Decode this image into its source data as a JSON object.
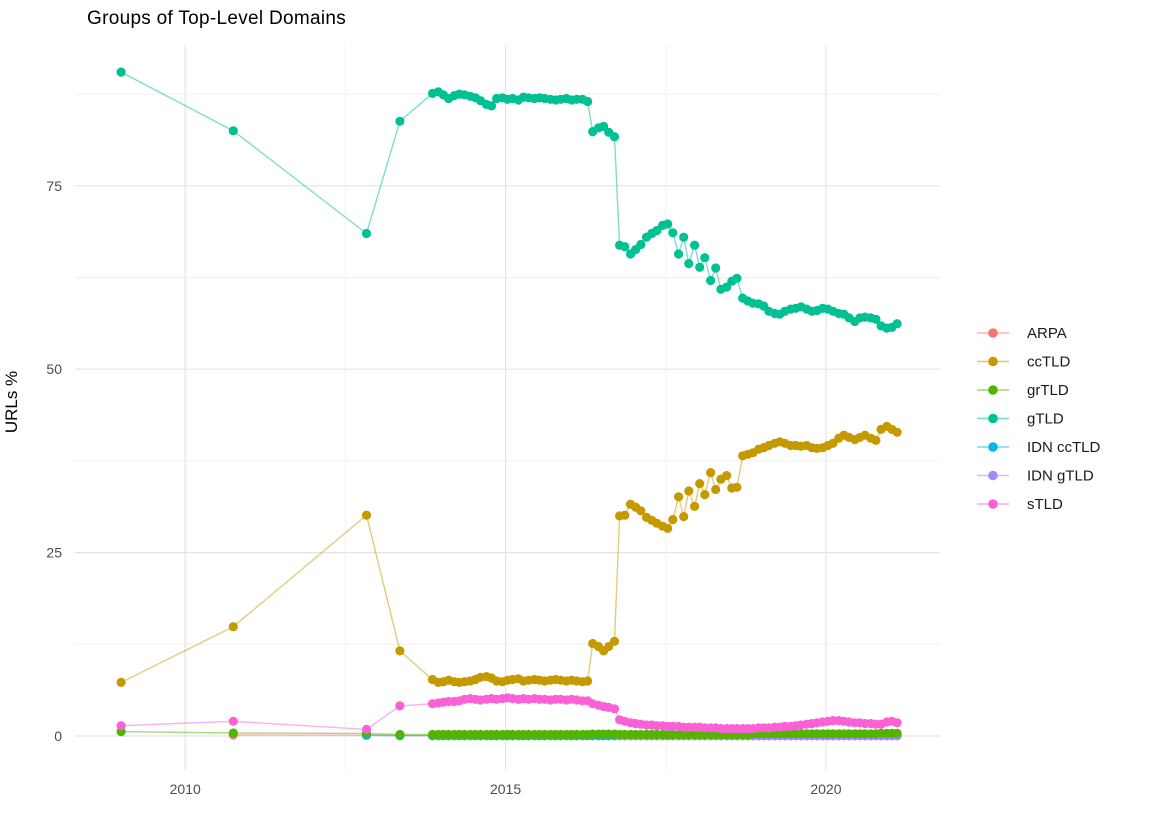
{
  "colors": {
    "background": "#FFFFFF",
    "grid_major": "#E4E4E4",
    "grid_minor": "#F1F1F1",
    "axis_text": "#4D4D4D",
    "text": "#1A1A1A"
  },
  "chart_data": {
    "type": "line",
    "title": "Groups of Top-Level Domains",
    "xlabel": "",
    "ylabel": "URLs %",
    "grid": true,
    "legend_position": "right",
    "x_ticks": [
      2010,
      2015,
      2020
    ],
    "x_minor_ticks": [
      2012.5,
      2017.5
    ],
    "y_ticks": [
      0,
      25,
      50,
      75
    ],
    "y_minor_ticks": [
      12.5,
      37.5,
      62.5,
      87.5
    ],
    "x_range": [
      2008.28,
      2021.78
    ],
    "y_range": [
      -4.64,
      94.2
    ],
    "x": [
      2009.0,
      2010.75,
      2012.83,
      2013.35,
      2013.86,
      2013.95,
      2014.03,
      2014.11,
      2014.2,
      2014.28,
      2014.36,
      2014.45,
      2014.53,
      2014.61,
      2014.7,
      2014.78,
      2014.86,
      2014.95,
      2015.03,
      2015.11,
      2015.2,
      2015.28,
      2015.36,
      2015.45,
      2015.53,
      2015.61,
      2015.7,
      2015.78,
      2015.86,
      2015.95,
      2016.03,
      2016.11,
      2016.2,
      2016.28,
      2016.36,
      2016.45,
      2016.53,
      2016.61,
      2016.7,
      2016.78,
      2016.86,
      2016.95,
      2017.03,
      2017.11,
      2017.2,
      2017.28,
      2017.36,
      2017.45,
      2017.53,
      2017.61,
      2017.7,
      2017.78,
      2017.86,
      2017.95,
      2018.03,
      2018.11,
      2018.2,
      2018.28,
      2018.36,
      2018.45,
      2018.53,
      2018.61,
      2018.7,
      2018.78,
      2018.86,
      2018.95,
      2019.03,
      2019.11,
      2019.2,
      2019.28,
      2019.36,
      2019.45,
      2019.53,
      2019.61,
      2019.7,
      2019.78,
      2019.86,
      2019.95,
      2020.03,
      2020.11,
      2020.2,
      2020.28,
      2020.36,
      2020.45,
      2020.53,
      2020.61,
      2020.7,
      2020.78,
      2020.86,
      2020.95,
      2021.03,
      2021.11
    ],
    "series": [
      {
        "name": "ARPA",
        "color": "#F8766D",
        "values": [
          null,
          0.15,
          0.1,
          0.05,
          0.05,
          0.05,
          0.05,
          0.05,
          0.05,
          0.05,
          0.05,
          0.05,
          0.05,
          0.05,
          0.05,
          0.05,
          0.05,
          0.05,
          0.05,
          0.05,
          0.05,
          0.05,
          0.05,
          0.05,
          0.05,
          0.05,
          0.05,
          0.05,
          0.05,
          0.05,
          0.05,
          0.05,
          0.05,
          0.05,
          0.05,
          0.05,
          0.05,
          0.05,
          0.05,
          0.05,
          0.05,
          0.05,
          0.05,
          0.05,
          0.05,
          0.05,
          0.05,
          0.05,
          0.05,
          0.05,
          0.05,
          0.05,
          0.05,
          0.05,
          0.05,
          0.05,
          0.05,
          0.05,
          0.05,
          0.05,
          0.05,
          0.05,
          0.05,
          0.05,
          0.05,
          0.05,
          0.05,
          0.05,
          0.05,
          0.05,
          0.05,
          0.05,
          0.05,
          0.05,
          0.05,
          0.05,
          0.05,
          0.05,
          0.05,
          0.05,
          0.05,
          0.05,
          0.05,
          0.05,
          0.05,
          0.05,
          0.05,
          0.05,
          0.05,
          0.05,
          0.05,
          0.05
        ]
      },
      {
        "name": "ccTLD",
        "color": "#C49A00",
        "values": [
          7.3,
          14.9,
          30.1,
          11.6,
          7.7,
          7.3,
          7.4,
          7.6,
          7.4,
          7.3,
          7.4,
          7.5,
          7.7,
          8.0,
          8.1,
          7.9,
          7.5,
          7.4,
          7.6,
          7.7,
          7.8,
          7.5,
          7.6,
          7.7,
          7.6,
          7.5,
          7.6,
          7.7,
          7.6,
          7.5,
          7.6,
          7.5,
          7.4,
          7.5,
          12.6,
          12.2,
          11.6,
          12.2,
          12.9,
          30.0,
          30.1,
          31.6,
          31.2,
          30.7,
          29.8,
          29.4,
          29.0,
          28.6,
          28.3,
          29.5,
          32.6,
          29.9,
          33.4,
          31.3,
          34.4,
          32.9,
          35.9,
          33.6,
          35.0,
          35.5,
          33.8,
          33.9,
          38.2,
          38.4,
          38.6,
          39.1,
          39.3,
          39.6,
          39.9,
          40.1,
          39.9,
          39.6,
          39.6,
          39.5,
          39.6,
          39.3,
          39.2,
          39.3,
          39.6,
          39.9,
          40.6,
          41.0,
          40.7,
          40.4,
          40.7,
          41.0,
          40.6,
          40.3,
          41.8,
          42.2,
          41.8,
          41.4
        ]
      },
      {
        "name": "grTLD",
        "color": "#53B400",
        "values": [
          0.6,
          0.4,
          0.35,
          0.2,
          0.2,
          0.2,
          0.2,
          0.2,
          0.2,
          0.2,
          0.2,
          0.2,
          0.2,
          0.2,
          0.2,
          0.2,
          0.2,
          0.2,
          0.2,
          0.2,
          0.2,
          0.2,
          0.2,
          0.2,
          0.2,
          0.2,
          0.2,
          0.2,
          0.2,
          0.2,
          0.2,
          0.2,
          0.2,
          0.2,
          0.25,
          0.25,
          0.25,
          0.25,
          0.25,
          0.2,
          0.2,
          0.2,
          0.2,
          0.2,
          0.2,
          0.2,
          0.2,
          0.2,
          0.2,
          0.2,
          0.2,
          0.2,
          0.2,
          0.2,
          0.2,
          0.2,
          0.2,
          0.2,
          0.2,
          0.2,
          0.2,
          0.2,
          0.2,
          0.2,
          0.3,
          0.3,
          0.3,
          0.3,
          0.3,
          0.3,
          0.3,
          0.3,
          0.3,
          0.3,
          0.3,
          0.3,
          0.3,
          0.3,
          0.3,
          0.3,
          0.3,
          0.3,
          0.3,
          0.3,
          0.3,
          0.3,
          0.3,
          0.3,
          0.35,
          0.35,
          0.35,
          0.35
        ]
      },
      {
        "name": "gTLD",
        "color": "#00C094",
        "values": [
          90.5,
          82.5,
          68.5,
          83.8,
          87.6,
          87.8,
          87.4,
          86.9,
          87.3,
          87.5,
          87.4,
          87.2,
          87.0,
          86.6,
          86.1,
          85.9,
          86.9,
          87.0,
          86.8,
          86.9,
          86.7,
          87.1,
          87.0,
          86.9,
          87.0,
          86.9,
          86.8,
          86.7,
          86.8,
          86.9,
          86.7,
          86.8,
          86.8,
          86.5,
          82.4,
          82.9,
          83.1,
          82.3,
          81.7,
          66.9,
          66.7,
          65.7,
          66.3,
          67.0,
          68.0,
          68.5,
          68.9,
          69.6,
          69.8,
          68.6,
          65.7,
          68.0,
          64.4,
          66.9,
          63.9,
          65.2,
          62.1,
          63.8,
          60.9,
          61.2,
          62.0,
          62.4,
          59.7,
          59.3,
          59.0,
          58.9,
          58.6,
          57.9,
          57.6,
          57.5,
          57.9,
          58.2,
          58.3,
          58.5,
          58.2,
          57.9,
          58.0,
          58.3,
          58.2,
          57.9,
          57.6,
          57.5,
          57.0,
          56.5,
          57.0,
          57.1,
          57.0,
          56.8,
          55.9,
          55.6,
          55.7,
          56.2
        ]
      },
      {
        "name": "IDN ccTLD",
        "color": "#00B6EB",
        "values": [
          null,
          null,
          0.1,
          0.05,
          0.05,
          0.05,
          0.05,
          0.05,
          0.05,
          0.05,
          0.05,
          0.05,
          0.05,
          0.05,
          0.05,
          0.05,
          0.05,
          0.05,
          0.05,
          0.05,
          0.05,
          0.05,
          0.05,
          0.05,
          0.05,
          0.05,
          0.05,
          0.05,
          0.05,
          0.05,
          0.05,
          0.05,
          0.05,
          0.05,
          0.05,
          0.05,
          0.05,
          0.05,
          0.05,
          0.05,
          0.05,
          0.05,
          0.05,
          0.05,
          0.05,
          0.05,
          0.05,
          0.05,
          0.05,
          0.05,
          0.05,
          0.05,
          0.05,
          0.05,
          0.05,
          0.05,
          0.05,
          0.05,
          0.05,
          0.05,
          0.05,
          0.05,
          0.05,
          0.05,
          0.05,
          0.05,
          0.05,
          0.05,
          0.05,
          0.05,
          0.05,
          0.05,
          0.05,
          0.05,
          0.05,
          0.05,
          0.05,
          0.05,
          0.05,
          0.05,
          0.05,
          0.05,
          0.05,
          0.05,
          0.05,
          0.05,
          0.05,
          0.05,
          0.05,
          0.05,
          0.05,
          0.05
        ]
      },
      {
        "name": "IDN gTLD",
        "color": "#A58AFF",
        "values": [
          null,
          null,
          null,
          null,
          null,
          null,
          null,
          null,
          null,
          null,
          null,
          null,
          null,
          null,
          null,
          null,
          null,
          null,
          null,
          null,
          null,
          null,
          null,
          null,
          null,
          null,
          null,
          null,
          null,
          null,
          null,
          null,
          null,
          null,
          null,
          null,
          null,
          null,
          null,
          0.02,
          0.02,
          0.02,
          0.02,
          0.02,
          0.02,
          0.02,
          0.02,
          0.02,
          0.02,
          0.02,
          0.02,
          0.02,
          0.02,
          0.02,
          0.02,
          0.02,
          0.02,
          0.02,
          0.02,
          0.02,
          0.02,
          0.02,
          0.02,
          0.02,
          0.02,
          0.02,
          0.02,
          0.02,
          0.02,
          0.02,
          0.02,
          0.02,
          0.02,
          0.02,
          0.02,
          0.02,
          0.02,
          0.02,
          0.02,
          0.02,
          0.02,
          0.02,
          0.02,
          0.02,
          0.02,
          0.02,
          0.02,
          0.02,
          0.02,
          0.02,
          0.05,
          0.05
        ]
      },
      {
        "name": "sTLD",
        "color": "#FB61D7",
        "values": [
          1.4,
          2.0,
          0.9,
          4.1,
          4.4,
          4.5,
          4.6,
          4.7,
          4.7,
          4.8,
          5.0,
          5.1,
          5.0,
          4.9,
          5.0,
          5.1,
          5.0,
          5.1,
          5.2,
          5.1,
          5.0,
          5.1,
          5.0,
          5.1,
          5.0,
          5.0,
          4.9,
          5.0,
          5.0,
          4.9,
          5.0,
          4.9,
          4.8,
          4.8,
          4.4,
          4.2,
          4.0,
          3.9,
          3.7,
          2.2,
          2.0,
          1.8,
          1.7,
          1.6,
          1.5,
          1.5,
          1.4,
          1.4,
          1.3,
          1.3,
          1.3,
          1.2,
          1.2,
          1.2,
          1.2,
          1.1,
          1.1,
          1.1,
          1.0,
          1.0,
          1.0,
          1.0,
          1.0,
          1.0,
          1.0,
          1.1,
          1.1,
          1.1,
          1.2,
          1.2,
          1.3,
          1.3,
          1.4,
          1.5,
          1.6,
          1.7,
          1.8,
          1.9,
          2.0,
          2.1,
          2.1,
          2.0,
          1.9,
          1.8,
          1.8,
          1.7,
          1.7,
          1.6,
          1.6,
          1.9,
          2.0,
          1.8
        ]
      }
    ],
    "draw_order": [
      "ARPA",
      "IDN ccTLD",
      "IDN gTLD",
      "grTLD",
      "sTLD",
      "ccTLD",
      "gTLD"
    ],
    "legend_entries": [
      "ARPA",
      "ccTLD",
      "grTLD",
      "gTLD",
      "IDN ccTLD",
      "IDN gTLD",
      "sTLD"
    ]
  }
}
